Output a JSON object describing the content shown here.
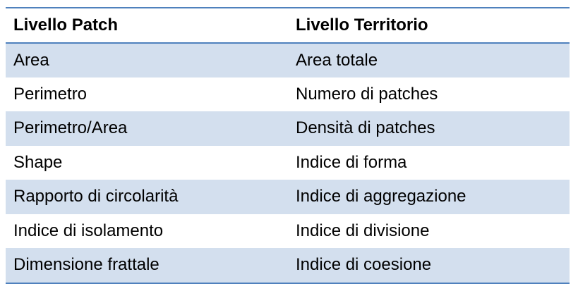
{
  "table": {
    "headers": [
      "Livello Patch",
      "Livello Territorio"
    ],
    "rows": [
      [
        "Area",
        "Area totale"
      ],
      [
        "Perimetro",
        "Numero di patches"
      ],
      [
        "Perimetro/Area",
        "Densità di patches"
      ],
      [
        "Shape",
        "Indice di forma"
      ],
      [
        "Rapporto di circolarità",
        "Indice di aggregazione"
      ],
      [
        "Indice di isolamento",
        "Indice di divisione"
      ],
      [
        "Dimensione frattale",
        "Indice di coesione"
      ]
    ],
    "colors": {
      "rule": "#4f81bd",
      "band": "#d3dfee"
    }
  }
}
